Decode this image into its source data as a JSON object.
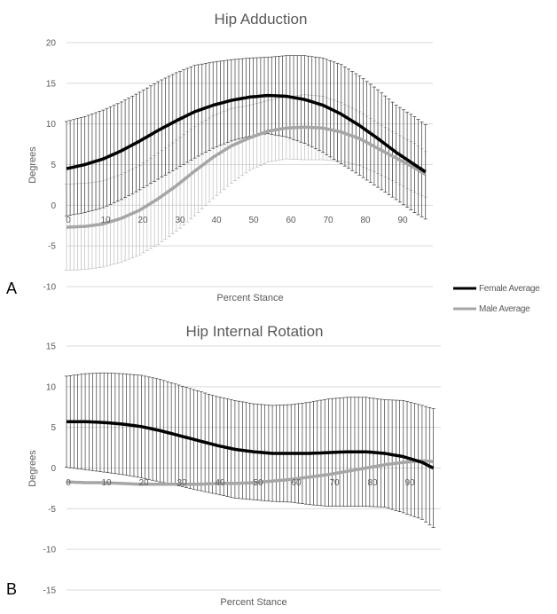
{
  "legend": {
    "female": {
      "label": "Female Average",
      "color": "#000000"
    },
    "male": {
      "label": "Male Average",
      "color": "#a6a6a6"
    }
  },
  "panels": [
    {
      "label": "A"
    },
    {
      "label": "B"
    }
  ],
  "chart_data": [
    {
      "type": "line",
      "title": "Hip Adduction",
      "xlabel": "Percent Stance",
      "ylabel": "Degrees",
      "xlim": [
        0,
        100
      ],
      "ylim": [
        -10,
        20
      ],
      "grid": true,
      "xticks": [
        "0",
        "10",
        "20",
        "30",
        "40",
        "50",
        "60",
        "70",
        "80",
        "90"
      ],
      "yticks": [
        "20",
        "15",
        "10",
        "5",
        "0",
        "-5",
        "-10"
      ],
      "x": [
        0,
        5,
        10,
        15,
        20,
        25,
        30,
        35,
        40,
        45,
        50,
        55,
        60,
        65,
        70,
        75,
        80,
        85,
        90,
        95,
        98
      ],
      "series": [
        {
          "name": "Female Average",
          "color": "#000000",
          "values": [
            4.5,
            5.0,
            5.7,
            6.7,
            7.9,
            9.2,
            10.4,
            11.5,
            12.3,
            12.9,
            13.3,
            13.5,
            13.4,
            13.0,
            12.3,
            11.2,
            9.8,
            8.2,
            6.5,
            5.0,
            4.1
          ],
          "sd": [
            5.8,
            5.9,
            6.0,
            6.0,
            6.0,
            6.0,
            5.9,
            5.7,
            5.3,
            5.0,
            4.8,
            4.7,
            5.0,
            5.4,
            5.8,
            6.1,
            6.1,
            6.0,
            5.8,
            5.9,
            5.8
          ]
        },
        {
          "name": "Male Average",
          "color": "#a6a6a6",
          "values": [
            -2.7,
            -2.6,
            -2.3,
            -1.6,
            -0.6,
            0.8,
            2.4,
            4.2,
            5.9,
            7.3,
            8.3,
            9.1,
            9.5,
            9.6,
            9.5,
            9.0,
            8.2,
            7.0,
            5.8,
            4.6,
            3.8
          ],
          "sd": [
            5.3,
            5.3,
            5.3,
            5.4,
            5.5,
            5.6,
            5.6,
            5.5,
            5.1,
            4.6,
            4.0,
            3.8,
            3.8,
            4.0,
            3.9,
            3.6,
            3.3,
            3.1,
            3.0,
            3.0,
            2.8
          ]
        }
      ]
    },
    {
      "type": "line",
      "title": "Hip Internal Rotation",
      "xlabel": "Percent Stance",
      "ylabel": "Degrees",
      "xlim": [
        0,
        100
      ],
      "ylim": [
        -15,
        15
      ],
      "grid": true,
      "xticks": [
        "0",
        "10",
        "20",
        "30",
        "40",
        "50",
        "60",
        "70",
        "80",
        "90"
      ],
      "yticks": [
        "15",
        "10",
        "5",
        "0",
        "-5",
        "-10",
        "-15"
      ],
      "x": [
        0,
        5,
        10,
        15,
        20,
        25,
        30,
        35,
        40,
        45,
        50,
        55,
        60,
        65,
        70,
        75,
        80,
        85,
        90,
        95,
        98
      ],
      "series": [
        {
          "name": "Female Average",
          "color": "#000000",
          "values": [
            5.7,
            5.7,
            5.6,
            5.4,
            5.1,
            4.6,
            4.0,
            3.4,
            2.8,
            2.3,
            2.0,
            1.8,
            1.8,
            1.8,
            1.9,
            2.0,
            2.0,
            1.8,
            1.4,
            0.7,
            0.0
          ],
          "sd": [
            5.6,
            5.9,
            6.1,
            6.2,
            6.3,
            6.3,
            6.2,
            6.1,
            6.0,
            6.0,
            5.9,
            5.9,
            6.0,
            6.3,
            6.6,
            6.7,
            6.7,
            6.6,
            6.9,
            7.0,
            7.3
          ]
        },
        {
          "name": "Male Average",
          "color": "#a6a6a6",
          "values": [
            -1.7,
            -1.8,
            -1.8,
            -1.9,
            -2.0,
            -2.0,
            -2.0,
            -2.0,
            -1.9,
            -1.9,
            -1.8,
            -1.6,
            -1.4,
            -1.1,
            -0.8,
            -0.4,
            0.0,
            0.4,
            0.7,
            0.9,
            0.8
          ]
        }
      ]
    }
  ]
}
